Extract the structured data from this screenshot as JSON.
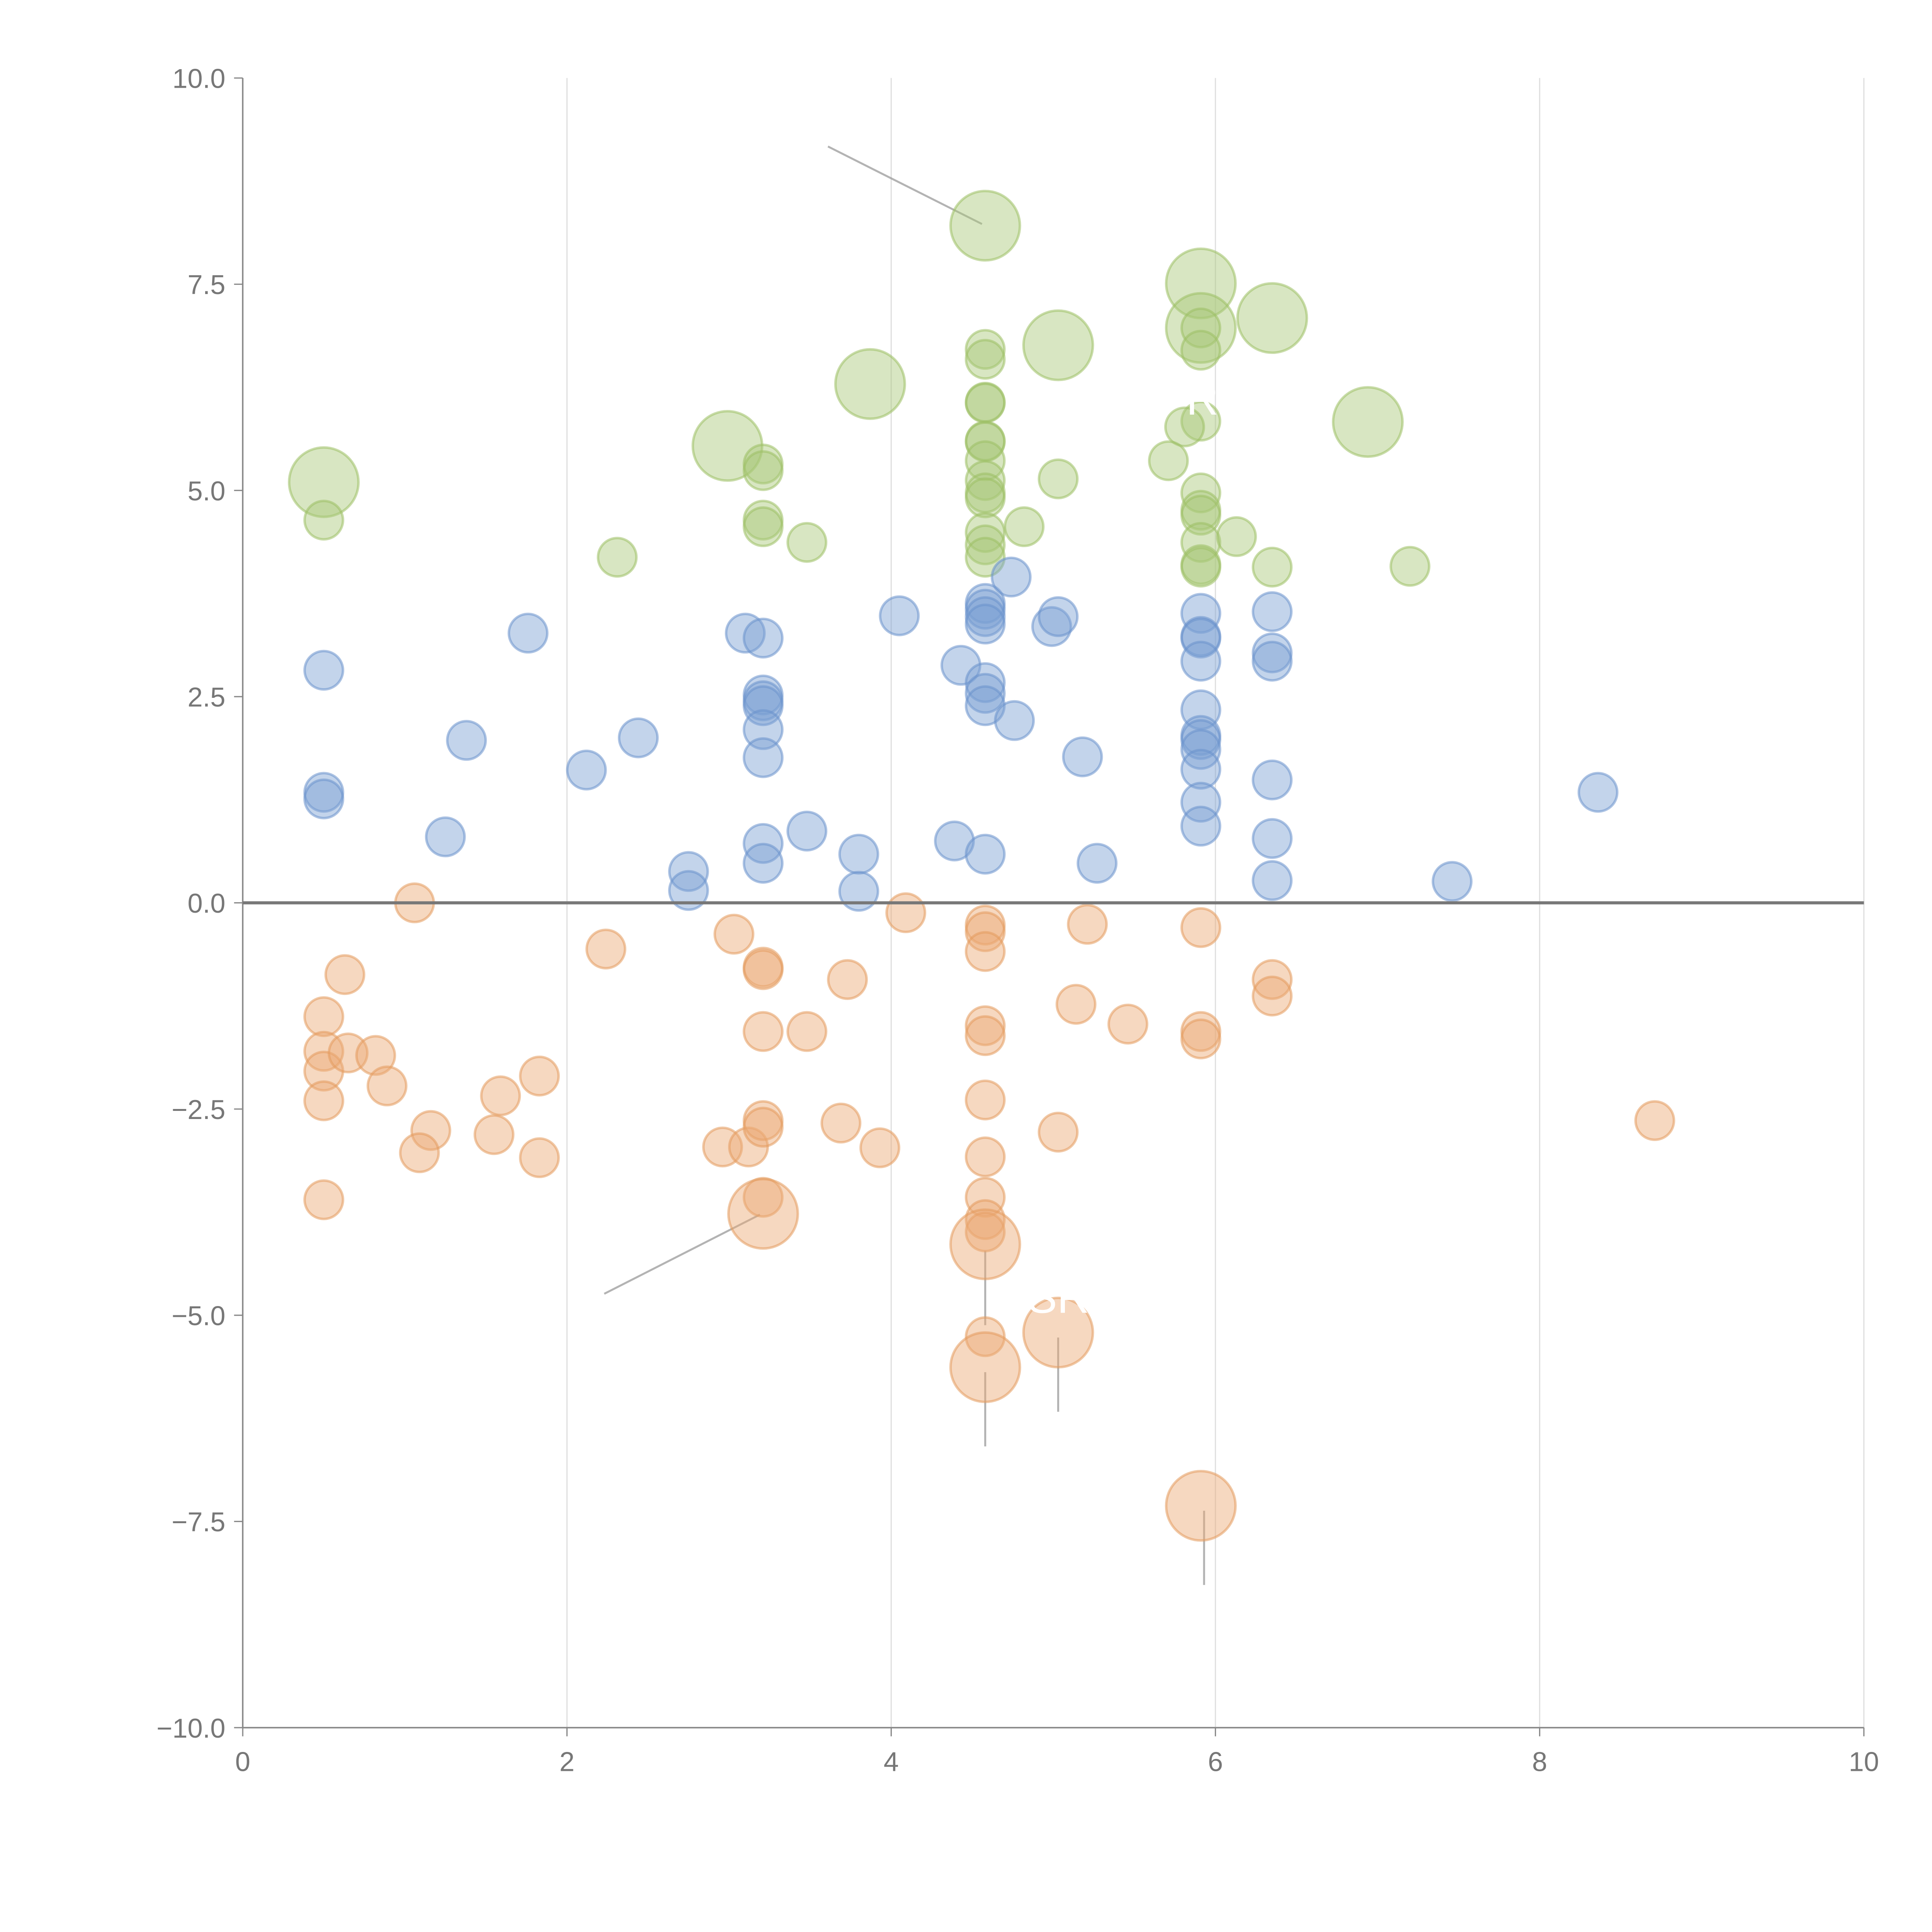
{
  "chart_data": {
    "type": "scatter",
    "title": "",
    "xlabel": "",
    "ylabel": "",
    "xlim": [
      0,
      10
    ],
    "ylim": [
      -10,
      10
    ],
    "x_ticks": [
      "0",
      "2",
      "4",
      "6",
      "8",
      "10"
    ],
    "y_ticks": [
      "10.0",
      "7.5",
      "5.0",
      "2.5",
      "0.0",
      "−2.5",
      "−5.0",
      "−7.5",
      "−10.0"
    ],
    "x_tick_values": [
      0,
      2,
      4,
      6,
      8,
      10
    ],
    "y_tick_values": [
      10,
      7.5,
      5,
      2.5,
      0,
      -2.5,
      -5,
      -7.5,
      -10
    ],
    "grid": "vertical",
    "zero_line": 0,
    "series": [
      {
        "color": "#a8c878",
        "stroke": "#9cc064",
        "points": [
          [
            4.58,
            8.21,
            2
          ],
          [
            5.91,
            7.51,
            2
          ],
          [
            5.91,
            6.97,
            2
          ],
          [
            6.35,
            7.09,
            2
          ],
          [
            5.03,
            6.76,
            2
          ],
          [
            3.87,
            6.29,
            2
          ],
          [
            2.99,
            5.54,
            2
          ],
          [
            0.5,
            5.1,
            2
          ],
          [
            6.94,
            5.83,
            2
          ],
          [
            4.58,
            6.71,
            1
          ],
          [
            4.58,
            6.59,
            1
          ],
          [
            4.58,
            6.07,
            1
          ],
          [
            4.58,
            6.06,
            1
          ],
          [
            4.58,
            5.6,
            1
          ],
          [
            4.58,
            5.59,
            1
          ],
          [
            4.58,
            5.36,
            1
          ],
          [
            4.58,
            5.12,
            1
          ],
          [
            4.58,
            4.97,
            1
          ],
          [
            4.58,
            4.91,
            1
          ],
          [
            4.58,
            4.49,
            1
          ],
          [
            4.58,
            4.34,
            1
          ],
          [
            4.58,
            4.19,
            1
          ],
          [
            5.91,
            6.97,
            1
          ],
          [
            5.91,
            6.7,
            1
          ],
          [
            5.91,
            5.84,
            1
          ],
          [
            5.81,
            5.77,
            1
          ],
          [
            5.71,
            5.36,
            1
          ],
          [
            5.91,
            4.97,
            1
          ],
          [
            5.91,
            4.76,
            1
          ],
          [
            5.91,
            4.7,
            1
          ],
          [
            5.91,
            4.37,
            1
          ],
          [
            5.91,
            4.1,
            1
          ],
          [
            5.91,
            4.07,
            1
          ],
          [
            6.13,
            4.44,
            1
          ],
          [
            6.35,
            4.07,
            1
          ],
          [
            7.2,
            4.08,
            1
          ],
          [
            5.03,
            5.14,
            1
          ],
          [
            4.82,
            4.56,
            1
          ],
          [
            3.48,
            4.37,
            1
          ],
          [
            3.21,
            5.32,
            1
          ],
          [
            3.21,
            5.24,
            1
          ],
          [
            3.21,
            4.64,
            1
          ],
          [
            3.21,
            4.56,
            1
          ],
          [
            2.31,
            4.19,
            1
          ],
          [
            0.5,
            4.64,
            1
          ]
        ]
      },
      {
        "color": "#7a9fd3",
        "stroke": "#6a92cc",
        "points": [
          [
            0.5,
            2.82,
            1
          ],
          [
            0.5,
            1.34,
            1
          ],
          [
            0.5,
            1.26,
            1
          ],
          [
            1.25,
            0.8,
            1
          ],
          [
            1.38,
            1.97,
            1
          ],
          [
            1.76,
            3.27,
            1
          ],
          [
            2.12,
            1.61,
            1
          ],
          [
            2.44,
            2.0,
            1
          ],
          [
            2.75,
            0.38,
            1
          ],
          [
            2.75,
            0.15,
            1
          ],
          [
            3.1,
            3.27,
            1
          ],
          [
            3.21,
            3.21,
            1
          ],
          [
            3.21,
            2.52,
            1
          ],
          [
            3.21,
            2.45,
            1
          ],
          [
            3.21,
            2.39,
            1
          ],
          [
            3.21,
            2.1,
            1
          ],
          [
            3.21,
            1.76,
            1
          ],
          [
            3.21,
            0.72,
            1
          ],
          [
            3.21,
            0.48,
            1
          ],
          [
            3.48,
            0.87,
            1
          ],
          [
            3.8,
            0.59,
            1
          ],
          [
            3.8,
            0.14,
            1
          ],
          [
            4.05,
            3.48,
            1
          ],
          [
            4.39,
            0.75,
            1
          ],
          [
            4.43,
            2.88,
            1
          ],
          [
            4.58,
            3.63,
            1
          ],
          [
            4.58,
            3.56,
            1
          ],
          [
            4.58,
            3.47,
            1
          ],
          [
            4.58,
            3.38,
            1
          ],
          [
            4.58,
            2.67,
            1
          ],
          [
            4.58,
            2.54,
            1
          ],
          [
            4.58,
            2.39,
            1
          ],
          [
            4.58,
            0.59,
            1
          ],
          [
            4.74,
            3.95,
            1
          ],
          [
            4.76,
            2.21,
            1
          ],
          [
            4.99,
            3.35,
            1
          ],
          [
            5.03,
            3.47,
            1
          ],
          [
            5.18,
            1.77,
            1
          ],
          [
            5.27,
            0.48,
            1
          ],
          [
            5.91,
            3.51,
            1
          ],
          [
            5.91,
            3.23,
            1
          ],
          [
            5.91,
            3.21,
            1
          ],
          [
            5.91,
            2.93,
            1
          ],
          [
            5.91,
            2.34,
            1
          ],
          [
            5.91,
            2.03,
            1
          ],
          [
            5.91,
            1.98,
            1
          ],
          [
            5.91,
            1.86,
            1
          ],
          [
            5.91,
            1.62,
            1
          ],
          [
            5.91,
            1.22,
            1
          ],
          [
            5.91,
            0.93,
            1
          ],
          [
            6.35,
            3.53,
            1
          ],
          [
            6.35,
            3.03,
            1
          ],
          [
            6.35,
            2.93,
            1
          ],
          [
            6.35,
            1.49,
            1
          ],
          [
            6.35,
            0.78,
            1
          ],
          [
            6.35,
            0.27,
            1
          ],
          [
            7.46,
            0.26,
            1
          ],
          [
            8.36,
            1.34,
            1
          ]
        ]
      },
      {
        "color": "#eba874",
        "stroke": "#e39a5c",
        "points": [
          [
            1.06,
            0.0,
            1
          ],
          [
            0.63,
            -0.87,
            1
          ],
          [
            0.5,
            -1.38,
            1
          ],
          [
            0.5,
            -1.8,
            1
          ],
          [
            0.5,
            -2.04,
            1
          ],
          [
            0.65,
            -1.82,
            1
          ],
          [
            0.82,
            -1.85,
            1
          ],
          [
            0.89,
            -2.22,
            1
          ],
          [
            0.5,
            -2.4,
            1
          ],
          [
            0.5,
            -3.6,
            1
          ],
          [
            1.16,
            -2.76,
            1
          ],
          [
            1.09,
            -3.03,
            1
          ],
          [
            1.55,
            -2.81,
            1
          ],
          [
            1.59,
            -2.34,
            1
          ],
          [
            1.83,
            -2.1,
            1
          ],
          [
            1.83,
            -3.09,
            1
          ],
          [
            2.24,
            -0.56,
            1
          ],
          [
            3.03,
            -0.38,
            1
          ],
          [
            2.96,
            -2.96,
            1
          ],
          [
            3.12,
            -2.96,
            1
          ],
          [
            3.21,
            -0.78,
            1
          ],
          [
            3.21,
            -0.81,
            1
          ],
          [
            3.21,
            -1.56,
            1
          ],
          [
            3.21,
            -2.64,
            1
          ],
          [
            3.21,
            -2.72,
            1
          ],
          [
            3.21,
            -3.57,
            1
          ],
          [
            3.21,
            -3.77,
            2
          ],
          [
            3.48,
            -1.56,
            1
          ],
          [
            3.69,
            -2.67,
            1
          ],
          [
            3.73,
            -0.93,
            1
          ],
          [
            3.93,
            -2.97,
            1
          ],
          [
            4.09,
            -0.12,
            1
          ],
          [
            4.58,
            -0.27,
            1
          ],
          [
            4.58,
            -0.35,
            1
          ],
          [
            4.58,
            -0.59,
            1
          ],
          [
            4.58,
            -1.49,
            1
          ],
          [
            4.58,
            -1.61,
            1
          ],
          [
            4.58,
            -2.39,
            1
          ],
          [
            4.58,
            -3.08,
            1
          ],
          [
            4.58,
            -3.57,
            1
          ],
          [
            4.58,
            -3.84,
            1
          ],
          [
            4.58,
            -3.99,
            1
          ],
          [
            4.58,
            -4.14,
            2
          ],
          [
            4.58,
            -5.26,
            1
          ],
          [
            4.58,
            -5.63,
            2
          ],
          [
            5.03,
            -2.78,
            1
          ],
          [
            5.03,
            -5.21,
            2
          ],
          [
            5.14,
            -1.23,
            1
          ],
          [
            5.21,
            -0.26,
            1
          ],
          [
            5.46,
            -1.47,
            1
          ],
          [
            5.91,
            -0.3,
            1
          ],
          [
            5.91,
            -1.56,
            1
          ],
          [
            5.91,
            -1.65,
            1
          ],
          [
            5.91,
            -7.31,
            2
          ],
          [
            6.35,
            -0.93,
            1
          ],
          [
            6.35,
            -1.13,
            1
          ],
          [
            8.71,
            -2.64,
            1
          ]
        ]
      }
    ],
    "leader_lines": [
      [
        [
          3.61,
          9.17
        ],
        [
          4.56,
          8.23
        ]
      ],
      [
        [
          2.23,
          -4.74
        ],
        [
          3.19,
          -3.78
        ]
      ],
      [
        [
          4.58,
          -4.22
        ],
        [
          4.58,
          -5.12
        ]
      ],
      [
        [
          4.58,
          -5.69
        ],
        [
          4.58,
          -6.59
        ]
      ],
      [
        [
          5.03,
          -5.27
        ],
        [
          5.03,
          -6.17
        ]
      ],
      [
        [
          5.93,
          -7.37
        ],
        [
          5.93,
          -8.27
        ]
      ]
    ],
    "annotations": [
      {
        "text": "SR",
        "x": 4.84,
        "y": -4.97
      },
      {
        "text": "R",
        "x": 5.82,
        "y": 5.92
      }
    ]
  }
}
